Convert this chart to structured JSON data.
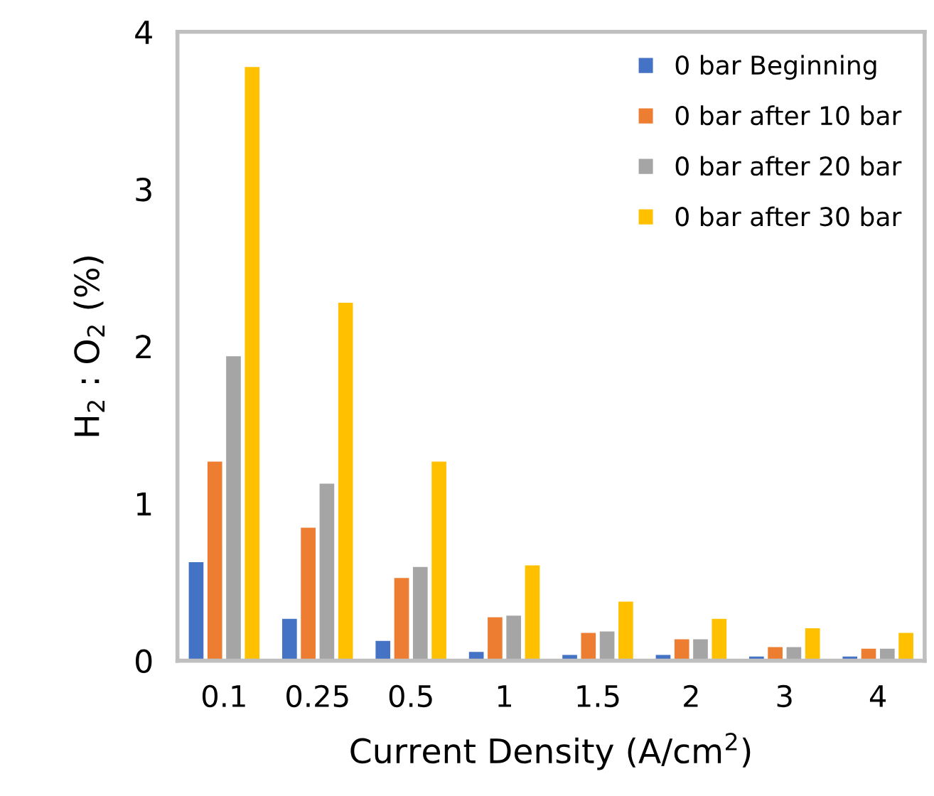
{
  "chart_data": {
    "type": "bar",
    "xlabel": "Current Density (A/cm$^{2}$)",
    "ylabel": "H$_{2}$ : O$_{2}$ (%)",
    "categories": [
      "0.1",
      "0.25",
      "0.5",
      "1",
      "1.5",
      "2",
      "3",
      "4"
    ],
    "series": [
      {
        "name": "0 bar Beginning",
        "color": "#4472c4",
        "values": [
          0.63,
          0.27,
          0.13,
          0.06,
          0.04,
          0.04,
          0.03,
          0.03
        ]
      },
      {
        "name": "0 bar after 10 bar",
        "color": "#ed7d31",
        "values": [
          1.27,
          0.85,
          0.53,
          0.28,
          0.18,
          0.14,
          0.09,
          0.08
        ]
      },
      {
        "name": "0 bar after 20 bar",
        "color": "#a5a5a5",
        "values": [
          1.94,
          1.13,
          0.6,
          0.29,
          0.19,
          0.14,
          0.09,
          0.08
        ]
      },
      {
        "name": "0 bar after 30 bar",
        "color": "#ffc000",
        "values": [
          3.78,
          2.28,
          1.27,
          0.61,
          0.38,
          0.27,
          0.21,
          0.18
        ]
      }
    ],
    "ylim": [
      0,
      4
    ],
    "yticks": [
      0,
      1,
      2,
      3,
      4
    ],
    "grid": false,
    "legend": "top right"
  }
}
